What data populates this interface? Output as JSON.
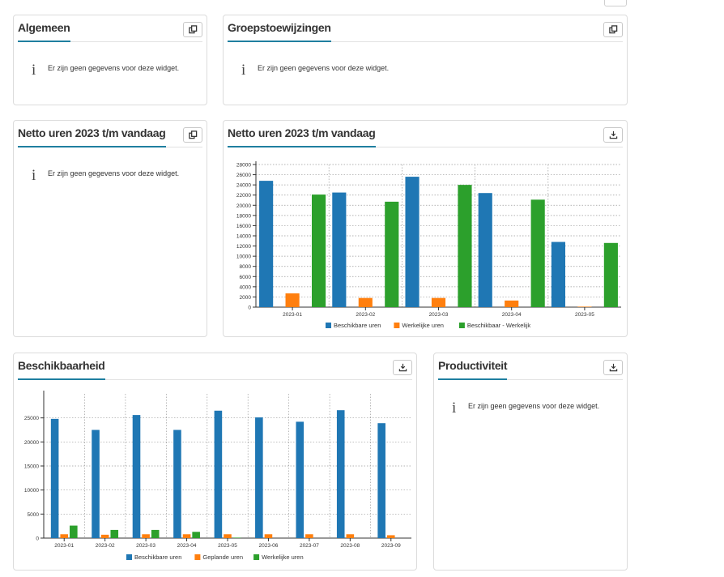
{
  "empty_message": "Er zijn geen gegevens voor deze widget.",
  "widgets": {
    "algemeen": {
      "title": "Algemeen"
    },
    "groepstoewijzingen": {
      "title": "Groepstoewijzingen"
    },
    "netto_left": {
      "title": "Netto uren 2023 t/m vandaag"
    },
    "netto_chart": {
      "title": "Netto uren 2023 t/m vandaag"
    },
    "beschikbaarheid": {
      "title": "Beschikbaarheid"
    },
    "productiviteit": {
      "title": "Productiviteit"
    }
  },
  "colors": {
    "blue": "#1f77b4",
    "orange": "#ff7f0e",
    "green": "#2ca02c",
    "accent": "#1f7fa0"
  },
  "icons": {
    "copy": "copy-icon",
    "download": "download-icon",
    "info": "info-icon"
  },
  "chart_data": [
    {
      "type": "bar",
      "categories": [
        "2023-01",
        "2023-02",
        "2023-03",
        "2023-04",
        "2023-05"
      ],
      "series": [
        {
          "name": "Beschikbare uren",
          "color": "#1f77b4",
          "values": [
            24800,
            22500,
            25600,
            22400,
            12800
          ]
        },
        {
          "name": "Werkelijke uren",
          "color": "#ff7f0e",
          "values": [
            2700,
            1800,
            1800,
            1300,
            100
          ]
        },
        {
          "name": "Beschikbaar - Werkelijk",
          "color": "#2ca02c",
          "values": [
            22100,
            20700,
            24000,
            21100,
            12600
          ]
        }
      ],
      "ylim": [
        0,
        28000
      ],
      "yticks": [
        0,
        2000,
        4000,
        6000,
        8000,
        10000,
        12000,
        14000,
        16000,
        18000,
        20000,
        22000,
        24000,
        26000,
        28000
      ],
      "grid": true,
      "legend": "bottom"
    },
    {
      "type": "bar",
      "categories": [
        "2023-01",
        "2023-02",
        "2023-03",
        "2023-04",
        "2023-05",
        "2023-06",
        "2023-07",
        "2023-08",
        "2023-09"
      ],
      "series": [
        {
          "name": "Beschikbare uren",
          "color": "#1f77b4",
          "values": [
            24800,
            22500,
            25600,
            22500,
            26500,
            25100,
            24200,
            26600,
            23900
          ]
        },
        {
          "name": "Geplande uren",
          "color": "#ff7f0e",
          "values": [
            800,
            700,
            800,
            800,
            800,
            800,
            800,
            800,
            600
          ]
        },
        {
          "name": "Werkelijke uren",
          "color": "#2ca02c",
          "values": [
            2600,
            1700,
            1700,
            1300,
            100,
            0,
            0,
            0,
            0
          ]
        }
      ],
      "ylim": [
        0,
        30000
      ],
      "yticks": [
        0,
        5000,
        10000,
        15000,
        20000,
        25000
      ],
      "grid": true,
      "legend": "bottom"
    }
  ]
}
